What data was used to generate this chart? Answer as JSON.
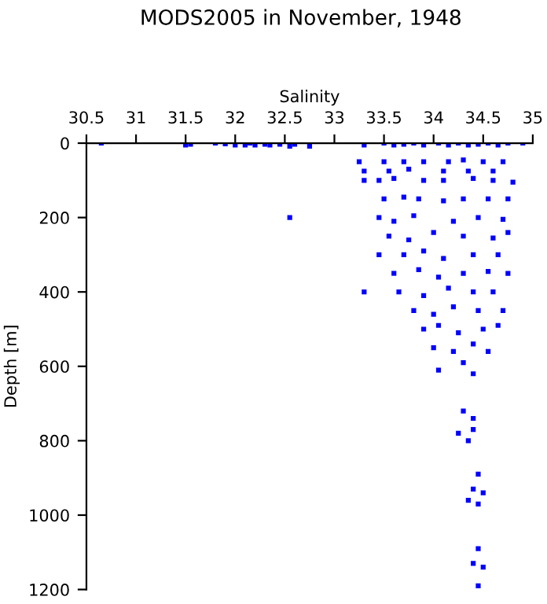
{
  "chart_data": {
    "type": "scatter",
    "title": "MODS2005 in November, 1948",
    "xlabel": "Salinity",
    "ylabel": "Depth [m]",
    "xlim": [
      30.5,
      35
    ],
    "xticks": [
      30.5,
      31,
      31.5,
      32,
      32.5,
      33,
      33.5,
      34,
      34.5,
      35
    ],
    "ylim": [
      1200,
      0
    ],
    "yticks": [
      0,
      200,
      400,
      600,
      800,
      1000,
      1200
    ],
    "marker": "square",
    "grid": false,
    "series": [
      {
        "color": "#0000ff",
        "x": [
          30.65,
          31.5,
          31.55,
          31.8,
          31.9,
          32.0,
          32.1,
          32.15,
          32.2,
          32.3,
          32.35,
          32.45,
          32.55,
          32.6,
          32.75,
          33.3,
          33.5,
          33.6,
          33.7,
          33.8,
          33.9,
          34.05,
          34.15,
          34.25,
          34.35,
          34.45,
          34.55,
          34.65,
          34.75,
          34.9,
          33.25,
          33.5,
          33.7,
          33.9,
          34.15,
          34.3,
          34.5,
          34.7,
          33.3,
          33.55,
          33.75,
          34.1,
          34.35,
          34.6,
          33.3,
          33.45,
          33.6,
          33.9,
          34.1,
          34.4,
          34.6,
          34.8,
          33.5,
          33.7,
          33.85,
          34.1,
          34.3,
          34.55,
          34.75,
          32.55,
          33.45,
          33.6,
          33.8,
          34.2,
          34.45,
          34.7,
          33.55,
          33.75,
          34.0,
          34.3,
          34.6,
          34.75,
          33.45,
          33.7,
          33.9,
          34.1,
          34.4,
          34.65,
          33.6,
          33.85,
          34.05,
          34.3,
          34.55,
          34.75,
          33.3,
          33.65,
          33.9,
          34.15,
          34.4,
          34.6,
          33.8,
          34.0,
          34.2,
          34.45,
          34.7,
          33.9,
          34.05,
          34.25,
          34.5,
          34.65,
          34.0,
          34.2,
          34.4,
          34.55,
          34.05,
          34.3,
          34.4,
          34.3,
          34.4,
          34.25,
          34.35,
          34.4,
          34.45,
          34.4,
          34.5,
          34.35,
          34.45,
          34.45,
          34.4,
          34.5,
          34.45
        ],
        "values": [
          0,
          5,
          3,
          0,
          2,
          5,
          5,
          0,
          5,
          3,
          5,
          3,
          8,
          3,
          8,
          5,
          0,
          5,
          3,
          0,
          5,
          0,
          5,
          0,
          5,
          3,
          0,
          5,
          0,
          0,
          50,
          50,
          50,
          50,
          50,
          45,
          50,
          50,
          75,
          75,
          70,
          75,
          75,
          75,
          100,
          100,
          95,
          100,
          100,
          95,
          100,
          105,
          150,
          145,
          150,
          155,
          150,
          150,
          150,
          200,
          200,
          210,
          195,
          210,
          200,
          205,
          250,
          260,
          240,
          250,
          255,
          240,
          300,
          300,
          290,
          310,
          300,
          300,
          350,
          340,
          360,
          350,
          345,
          350,
          400,
          400,
          410,
          390,
          400,
          400,
          450,
          460,
          440,
          450,
          450,
          500,
          490,
          510,
          500,
          490,
          550,
          560,
          540,
          560,
          610,
          590,
          620,
          720,
          740,
          780,
          800,
          770,
          890,
          930,
          940,
          960,
          970,
          1090,
          1130,
          1140,
          1190
        ]
      }
    ]
  }
}
